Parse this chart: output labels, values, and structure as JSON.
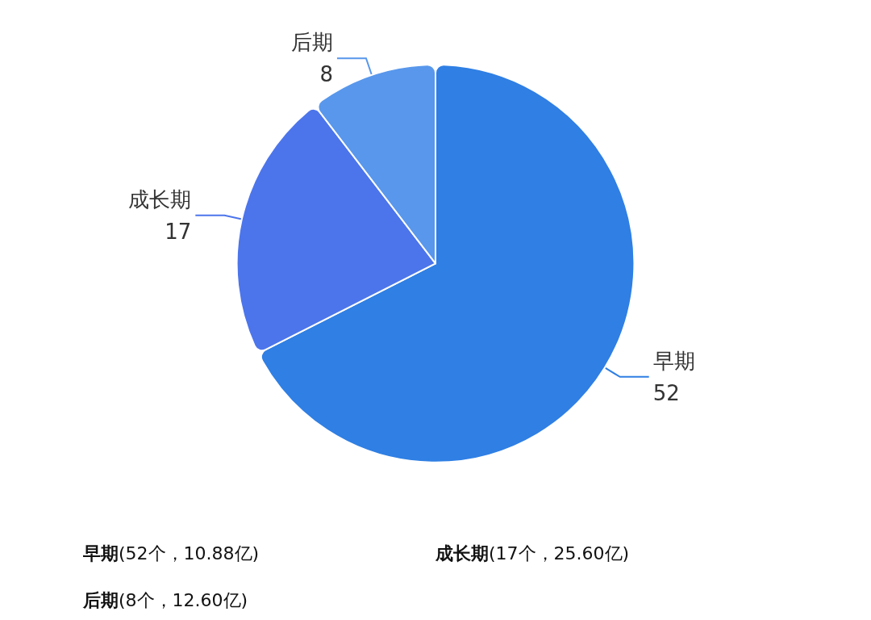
{
  "chart_data": {
    "type": "pie",
    "categories": [
      "早期",
      "成长期",
      "后期"
    ],
    "values": [
      52,
      17,
      8
    ],
    "colors": [
      "#2f7fe4",
      "#4c75eb",
      "#5897ec"
    ],
    "data_labels": true,
    "annotations": [
      "早期(52个，10.88亿)",
      "成长期(17个，25.60亿)",
      "后期(8个，12.60亿)"
    ]
  }
}
